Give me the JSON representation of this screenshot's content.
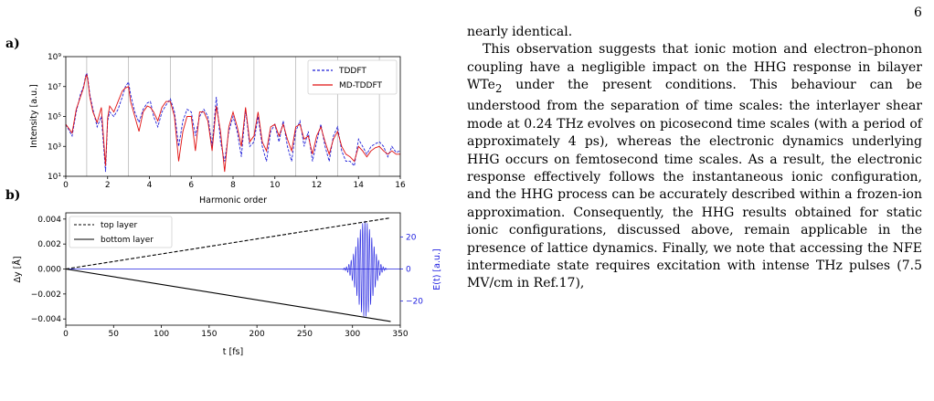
{
  "page_number": "6",
  "panel_a_label": "a)",
  "panel_b_label": "b)",
  "chart_data": [
    {
      "type": "line",
      "panel": "a)",
      "xlabel": "Harmonic order",
      "ylabel": "Intensity [a.u.]",
      "xlim": [
        0,
        16
      ],
      "ylim": [
        10,
        1000000000
      ],
      "yscale": "log",
      "xticks": [
        "0",
        "2",
        "4",
        "6",
        "8",
        "10",
        "12",
        "14",
        "16"
      ],
      "yticks": [
        "10¹",
        "10³",
        "10⁵",
        "10⁷",
        "10⁹"
      ],
      "vertical_gridlines_at": [
        1,
        3,
        5,
        7,
        9,
        11,
        13,
        15
      ],
      "legend_position": "top-right",
      "series": [
        {
          "name": "TDDFT",
          "color": "#1f1fd8",
          "style": "dashed",
          "x": [
            0,
            0.3,
            0.5,
            0.7,
            0.85,
            0.95,
            1.0,
            1.05,
            1.15,
            1.3,
            1.5,
            1.7,
            1.9,
            2.0,
            2.1,
            2.3,
            2.5,
            2.7,
            2.85,
            3.0,
            3.1,
            3.3,
            3.5,
            3.7,
            3.9,
            4.05,
            4.2,
            4.4,
            4.6,
            4.8,
            5.0,
            5.2,
            5.4,
            5.6,
            5.8,
            6.0,
            6.2,
            6.4,
            6.6,
            6.8,
            7.0,
            7.2,
            7.4,
            7.6,
            7.8,
            8.0,
            8.2,
            8.4,
            8.6,
            8.8,
            9.0,
            9.2,
            9.4,
            9.6,
            9.8,
            10.0,
            10.2,
            10.4,
            10.6,
            10.8,
            11.0,
            11.2,
            11.4,
            11.6,
            11.8,
            12.0,
            12.2,
            12.4,
            12.6,
            12.8,
            13.0,
            13.2,
            13.4,
            13.6,
            13.8,
            14.0,
            14.2,
            14.4,
            14.6,
            14.8,
            15.0,
            15.2,
            15.4,
            15.6,
            15.8,
            16.0
          ],
          "y": [
            30000,
            5000,
            200000,
            3000000,
            10000000,
            50000000,
            80000000,
            40000000,
            3000000,
            300000,
            20000,
            100000,
            20,
            50000,
            200000,
            100000,
            300000,
            2000000,
            10000000,
            20000000,
            3000000,
            200000,
            40000,
            300000,
            800000,
            1000000,
            100000,
            20000,
            200000,
            600000,
            1500000,
            200000,
            1000,
            50000,
            300000,
            200000,
            5000,
            100000,
            300000,
            100000,
            1000,
            2000000,
            2000,
            100,
            10000,
            100000,
            10000,
            200,
            300000,
            1000,
            2000,
            100000,
            1000,
            100,
            10000,
            30000,
            2000,
            50000,
            1000,
            100,
            10000,
            50000,
            1000,
            10000,
            100,
            2000,
            30000,
            1000,
            100,
            5000,
            20000,
            500,
            100,
            100,
            50,
            3000,
            1000,
            300,
            1000,
            1500,
            2000,
            1000,
            200,
            1000,
            400,
            500
          ]
        },
        {
          "name": "MD-TDDFT",
          "color": "#e01010",
          "style": "solid",
          "x": [
            0,
            0.3,
            0.5,
            0.7,
            0.85,
            0.95,
            1.0,
            1.05,
            1.15,
            1.3,
            1.5,
            1.7,
            1.9,
            2.0,
            2.1,
            2.3,
            2.5,
            2.7,
            2.85,
            3.0,
            3.1,
            3.3,
            3.5,
            3.7,
            3.9,
            4.05,
            4.2,
            4.4,
            4.6,
            4.8,
            5.0,
            5.2,
            5.4,
            5.6,
            5.8,
            6.0,
            6.2,
            6.4,
            6.6,
            6.8,
            7.0,
            7.2,
            7.4,
            7.6,
            7.8,
            8.0,
            8.2,
            8.4,
            8.6,
            8.8,
            9.0,
            9.2,
            9.4,
            9.6,
            9.8,
            10.0,
            10.2,
            10.4,
            10.6,
            10.8,
            11.0,
            11.2,
            11.4,
            11.6,
            11.8,
            12.0,
            12.2,
            12.4,
            12.6,
            12.8,
            13.0,
            13.2,
            13.4,
            13.6,
            13.8,
            14.0,
            14.2,
            14.4,
            14.6,
            14.8,
            15.0,
            15.2,
            15.4,
            15.6,
            15.8,
            16.0
          ],
          "y": [
            30000,
            8000,
            300000,
            2000000,
            8000000,
            40000000,
            60000000,
            30000000,
            2000000,
            200000,
            40000,
            400000,
            50,
            80000,
            500000,
            200000,
            1000000,
            5000000,
            8000000,
            10000000,
            1000000,
            100000,
            10000,
            200000,
            500000,
            400000,
            200000,
            50000,
            400000,
            1000000,
            1000000,
            100000,
            100,
            10000,
            100000,
            100000,
            500,
            200000,
            200000,
            50000,
            500,
            500000,
            10000,
            20,
            20000,
            200000,
            20000,
            1000,
            400000,
            2000,
            5000,
            200000,
            2000,
            500,
            20000,
            30000,
            5000,
            30000,
            3000,
            500,
            20000,
            30000,
            3000,
            5000,
            300,
            5000,
            20000,
            2000,
            300,
            3000,
            10000,
            1000,
            300,
            200,
            100,
            1000,
            500,
            200,
            500,
            800,
            1000,
            500,
            300,
            500,
            300,
            300
          ]
        }
      ]
    },
    {
      "type": "line",
      "panel": "b)",
      "xlabel": "t [fs]",
      "ylabel": "Δy [Å]",
      "ylabel_right": "E(t) [a.u.]",
      "xlim": [
        0,
        350
      ],
      "ylim": [
        -0.0045,
        0.0045
      ],
      "ylim_right": [
        -35,
        35
      ],
      "xticks": [
        "0",
        "50",
        "100",
        "150",
        "200",
        "250",
        "300",
        "350"
      ],
      "yticks": [
        "0.004",
        "0.002",
        "0.000",
        "−0.002",
        "−0.004"
      ],
      "yticks_right": [
        "20",
        "0",
        "−20"
      ],
      "legend_position": "top-left",
      "series": [
        {
          "name": "top layer",
          "color": "#000000",
          "style": "dashed",
          "x": [
            0,
            340
          ],
          "y": [
            0,
            0.0041
          ]
        },
        {
          "name": "bottom layer",
          "color": "#000000",
          "style": "solid",
          "x": [
            0,
            340
          ],
          "y": [
            0,
            -0.0042
          ]
        },
        {
          "name": "E(t)",
          "color": "#2020e0",
          "style": "solid",
          "axis": "right",
          "pulse": {
            "center_fs": 313,
            "envelope_width_fs": 11,
            "amplitude": 30,
            "period_fs": 2.4,
            "span_fs": [
              290,
              336
            ]
          }
        }
      ]
    }
  ],
  "text": {
    "p1": "nearly identical.",
    "p2a": "This observation suggests that ionic motion and electron–phonon coupling have a negligible impact on the HHG response in bilayer WTe",
    "p2sub": "2",
    "p2b": " under the present conditions. This behaviour can be understood from the separation of time scales: the interlayer shear mode at 0.24 THz evolves on picosecond time scales (with a period of approximately 4 ps), whereas the electronic dynamics underlying HHG occurs on femtosecond time scales. As a result, the electronic response effectively follows the instantaneous ionic configuration, and the HHG process can be accurately described within a frozen-ion approximation. Consequently, the HHG results obtained for static ionic configurations, discussed above, remain applicable in the presence of lattice dynamics. Finally, we note that accessing the NFE intermediate state requires excitation with intense THz pulses (7.5 MV/cm in Ref.17),"
  }
}
